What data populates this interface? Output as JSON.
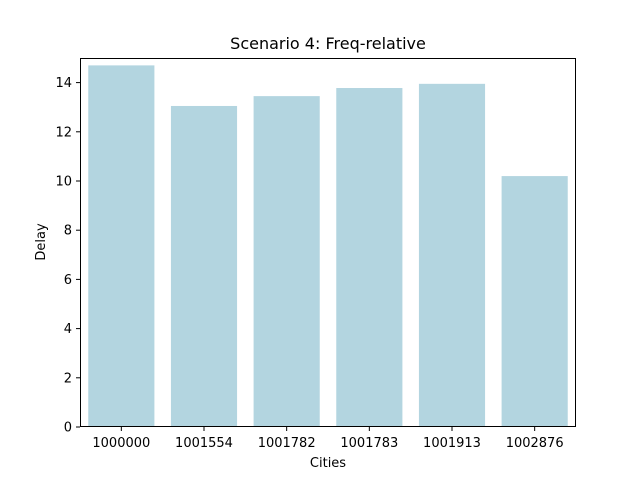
{
  "chart_data": {
    "type": "bar",
    "title": "Scenario 4: Freq-relative",
    "xlabel": "Cities",
    "ylabel": "Delay",
    "categories": [
      "1000000",
      "1001554",
      "1001782",
      "1001783",
      "1001913",
      "1002876"
    ],
    "values": [
      14.7,
      13.05,
      13.45,
      13.78,
      13.95,
      10.2
    ],
    "ylim": [
      0,
      15
    ],
    "yticks": [
      0,
      2,
      4,
      6,
      8,
      10,
      12,
      14
    ],
    "ytick_labels": [
      "0",
      "2",
      "4",
      "6",
      "8",
      "10",
      "12",
      "14"
    ],
    "bar_color": "#b3d5e0",
    "grid": false,
    "legend": "none"
  }
}
